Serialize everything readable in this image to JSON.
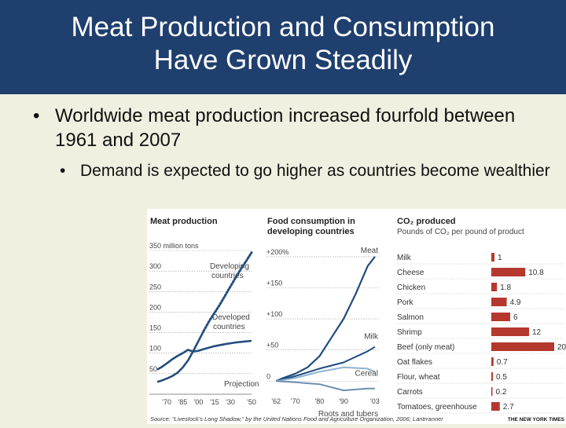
{
  "slide": {
    "title_line1": "Meat Production and Consumption",
    "title_line2": "Have Grown Steadily",
    "bullet1": "Worldwide meat production increased fourfold between 1961 and 2007",
    "bullet2": "Demand is expected to go higher as countries become wealthier"
  },
  "source": "Source: “Livestock’s Long Shadow,” by the United Nations Food and Agriculture Organization, 2006; Lantrranner",
  "credit": "THE NEW YORK TIMES",
  "chart_data": [
    {
      "type": "line",
      "title": "Meat production",
      "unit_label": "350 million tons",
      "x_ticks": [
        "'70",
        "'85",
        "'00",
        "'15",
        "'30",
        "'50"
      ],
      "y_ticks": [
        "300",
        "250",
        "200",
        "150",
        "100",
        "50"
      ],
      "ylim": [
        0,
        350
      ],
      "series": [
        {
          "name": "Developing countries",
          "x": [
            1961,
            1965,
            1970,
            1975,
            1980,
            1985,
            1990,
            1995,
            2000,
            2005
          ],
          "values": [
            30,
            33,
            38,
            44,
            52,
            65,
            82,
            105,
            130,
            155
          ]
        },
        {
          "name": "Developing countries projection",
          "dashed": true,
          "x": [
            2005,
            2010,
            2015,
            2020,
            2025,
            2030,
            2035,
            2040,
            2045,
            2050
          ],
          "values": [
            155,
            178,
            198,
            218,
            240,
            262,
            284,
            305,
            325,
            345
          ]
        },
        {
          "name": "Developed countries",
          "x": [
            1961,
            1965,
            1970,
            1975,
            1980,
            1985,
            1990,
            1995,
            2000,
            2005,
            2015,
            2025,
            2035,
            2050
          ],
          "values": [
            60,
            66,
            75,
            85,
            93,
            100,
            108,
            104,
            106,
            110,
            117,
            122,
            126,
            130
          ]
        }
      ],
      "annotations": [
        "Developing countries",
        "Developed countries",
        "Projection"
      ]
    },
    {
      "type": "line",
      "title": "Food consumption in developing countries",
      "x_ticks": [
        "'62",
        "'70",
        "'80",
        "'90",
        "'03"
      ],
      "y_ticks": [
        "+200%",
        "+150",
        "+100",
        "+50",
        "0"
      ],
      "ylim": [
        -30,
        210
      ],
      "series": [
        {
          "name": "Meat",
          "x": [
            1962,
            1965,
            1970,
            1975,
            1980,
            1985,
            1990,
            1995,
            2000,
            2003
          ],
          "values": [
            0,
            5,
            12,
            22,
            40,
            70,
            100,
            140,
            185,
            200
          ]
        },
        {
          "name": "Milk",
          "x": [
            1962,
            1970,
            1980,
            1990,
            2000,
            2003
          ],
          "values": [
            0,
            8,
            20,
            30,
            48,
            55
          ]
        },
        {
          "name": "Cereal",
          "x": [
            1962,
            1970,
            1980,
            1990,
            2000,
            2003
          ],
          "values": [
            0,
            5,
            15,
            22,
            20,
            15
          ]
        },
        {
          "name": "Roots and tubers",
          "x": [
            1962,
            1970,
            1980,
            1990,
            2000,
            2003
          ],
          "values": [
            0,
            -2,
            -5,
            -15,
            -12,
            -12
          ]
        }
      ]
    },
    {
      "type": "bar",
      "title": "CO₂ produced",
      "subtitle": "Pounds of CO₂ per pound of product",
      "categories": [
        "Milk",
        "Cheese",
        "Chicken",
        "Pork",
        "Salmon",
        "Shrimp",
        "Beef (only meat)",
        "Oat flakes",
        "Flour, wheat",
        "Carrots",
        "Tomatoes, greenhouse"
      ],
      "values": [
        1,
        10.8,
        1.8,
        4.9,
        6,
        12,
        20,
        0.7,
        0.5,
        0.2,
        2.7
      ],
      "labels": [
        "1",
        "10.8",
        "1.8",
        "4.9",
        "6",
        "12",
        "20",
        "0.7",
        "0.5",
        "0.2",
        "2.7"
      ],
      "xlim": [
        0,
        20
      ],
      "color": "#b5382e"
    }
  ]
}
